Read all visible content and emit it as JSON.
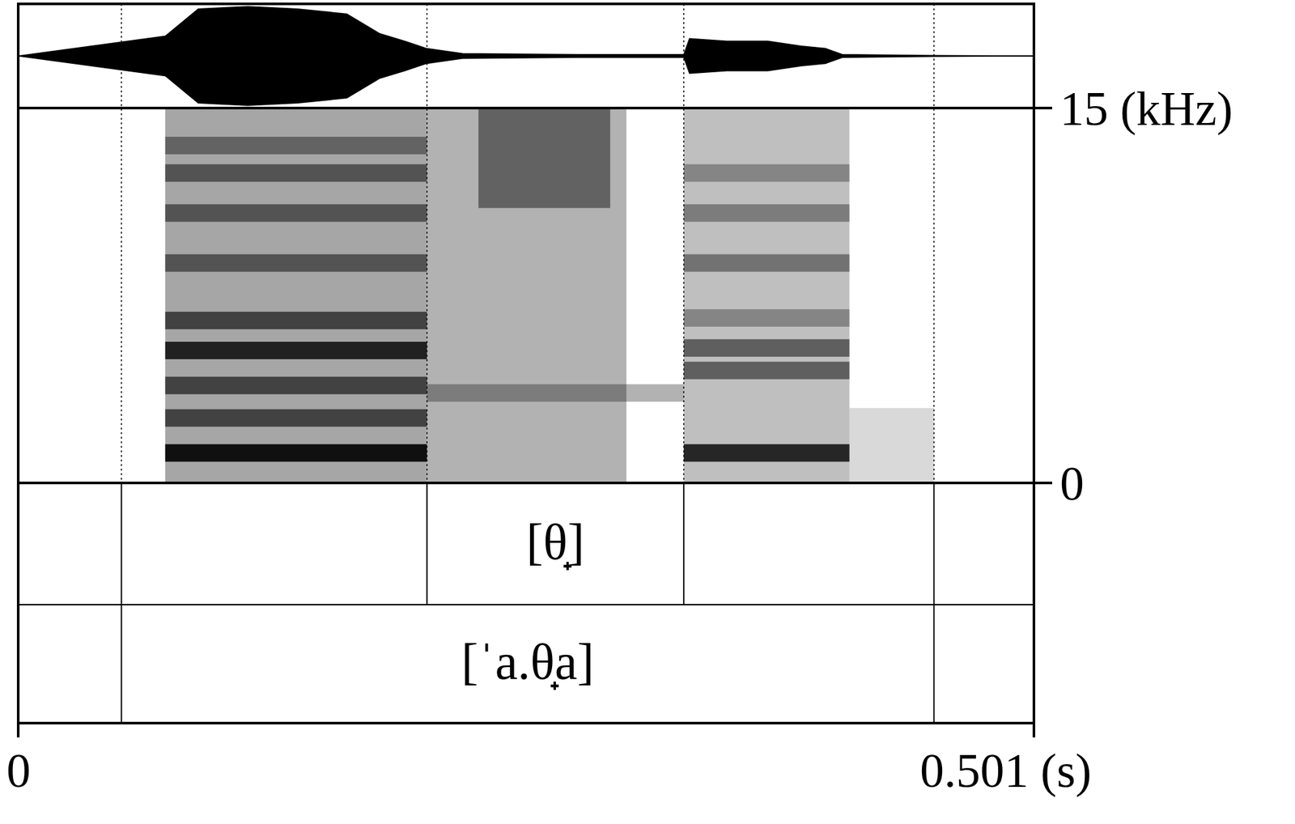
{
  "chart_data": {
    "type": "spectrogram",
    "xlim": [
      0,
      0.501
    ],
    "xticks": [
      0,
      {
        "value": 0.501,
        "label": "0.501 (s)"
      }
    ],
    "ylim": [
      0,
      15
    ],
    "yticks": [
      {
        "value": 0,
        "label": "0"
      },
      {
        "value": 15,
        "label": "15 (kHz)"
      }
    ],
    "waveform": {
      "ylim": [
        -1,
        1
      ],
      "x": [
        0,
        0.0725,
        0.0888,
        0.1132,
        0.1377,
        0.1621,
        0.1784,
        0.1906,
        0.2016,
        0.2191,
        0.2761,
        0.3283,
        0.3311,
        0.3495,
        0.3698,
        0.3861,
        0.3983,
        0.4065,
        0.4517,
        0.501
      ],
      "envelope": [
        0,
        0.4,
        0.95,
        1.0,
        0.95,
        0.85,
        0.45,
        0.3,
        0.15,
        0.05,
        0.03,
        0.03,
        0.35,
        0.3,
        0.3,
        0.2,
        0.15,
        0.03,
        0.01,
        0
      ]
    },
    "spectrogram": {
      "regions": [
        {
          "start": 0.0725,
          "end": 0.2016,
          "fmin": 0,
          "fmax": 15,
          "intensity": 0.35
        },
        {
          "start": 0.2016,
          "end": 0.3,
          "fmin": 0,
          "fmax": 15,
          "intensity": 0.3
        },
        {
          "start": 0.227,
          "end": 0.292,
          "fmin": 11,
          "fmax": 15,
          "intensity": 0.45
        },
        {
          "start": 0.3283,
          "end": 0.41,
          "fmin": 0,
          "fmax": 15,
          "intensity": 0.25
        },
        {
          "start": 0.41,
          "end": 0.4517,
          "fmin": 0,
          "fmax": 3,
          "intensity": 0.15
        }
      ],
      "bands": [
        {
          "start": 0.0725,
          "end": 0.2016,
          "freq": 1.2,
          "intensity": 0.9
        },
        {
          "start": 0.0725,
          "end": 0.2016,
          "freq": 2.6,
          "intensity": 0.6
        },
        {
          "start": 0.0725,
          "end": 0.2016,
          "freq": 3.9,
          "intensity": 0.6
        },
        {
          "start": 0.0725,
          "end": 0.2016,
          "freq": 5.3,
          "intensity": 0.8
        },
        {
          "start": 0.0725,
          "end": 0.2016,
          "freq": 6.5,
          "intensity": 0.6
        },
        {
          "start": 0.0725,
          "end": 0.2016,
          "freq": 8.8,
          "intensity": 0.5
        },
        {
          "start": 0.0725,
          "end": 0.2016,
          "freq": 10.8,
          "intensity": 0.5
        },
        {
          "start": 0.0725,
          "end": 0.2016,
          "freq": 12.4,
          "intensity": 0.5
        },
        {
          "start": 0.0725,
          "end": 0.2016,
          "freq": 13.5,
          "intensity": 0.4
        },
        {
          "start": 0.2016,
          "end": 0.3283,
          "freq": 3.6,
          "intensity": 0.3
        },
        {
          "start": 0.3283,
          "end": 0.41,
          "freq": 1.2,
          "intensity": 0.8
        },
        {
          "start": 0.3283,
          "end": 0.41,
          "freq": 4.5,
          "intensity": 0.5
        },
        {
          "start": 0.3283,
          "end": 0.41,
          "freq": 5.4,
          "intensity": 0.5
        },
        {
          "start": 0.3283,
          "end": 0.41,
          "freq": 6.6,
          "intensity": 0.3
        },
        {
          "start": 0.3283,
          "end": 0.41,
          "freq": 8.8,
          "intensity": 0.4
        },
        {
          "start": 0.3283,
          "end": 0.41,
          "freq": 10.8,
          "intensity": 0.35
        },
        {
          "start": 0.3283,
          "end": 0.41,
          "freq": 12.4,
          "intensity": 0.3
        }
      ]
    },
    "tiers": [
      {
        "boundaries": [
          0.0509,
          0.2016,
          0.3283,
          0.4517
        ],
        "labels": [
          {
            "start": 0.2016,
            "end": 0.3283,
            "text": "[θ̟]"
          }
        ]
      },
      {
        "boundaries": [
          0.0509,
          0.4517
        ],
        "labels": [
          {
            "start": 0.0509,
            "end": 0.4517,
            "text": "[ˈa.θ̟a]"
          }
        ]
      }
    ]
  }
}
